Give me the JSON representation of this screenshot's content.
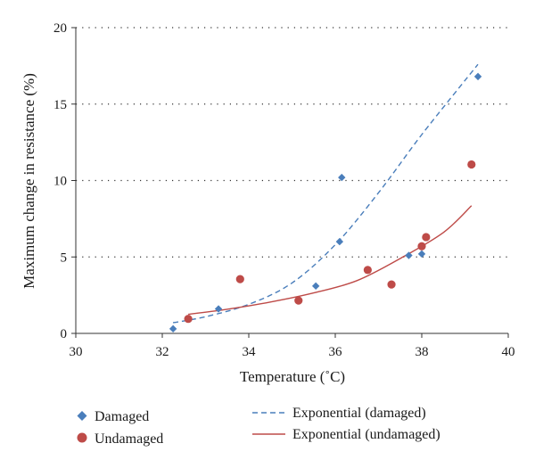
{
  "chart_data": {
    "type": "scatter",
    "xlabel": "Temperature (˚C)",
    "ylabel": "Maximum change in resistance (%)",
    "xlim": [
      30,
      40
    ],
    "ylim": [
      0,
      20
    ],
    "x_ticks": [
      30,
      32,
      34,
      36,
      38,
      40
    ],
    "y_ticks": [
      0,
      5,
      10,
      15,
      20
    ],
    "grid": "horizontal dotted",
    "legend_position": "bottom",
    "series": [
      {
        "name": "Damaged",
        "marker": "diamond",
        "color": "#4a7ebb",
        "points": [
          {
            "x": 32.25,
            "y": 0.3
          },
          {
            "x": 33.3,
            "y": 1.6
          },
          {
            "x": 35.55,
            "y": 3.1
          },
          {
            "x": 36.1,
            "y": 6.0
          },
          {
            "x": 36.15,
            "y": 10.2
          },
          {
            "x": 37.7,
            "y": 5.1
          },
          {
            "x": 38.0,
            "y": 5.2
          },
          {
            "x": 39.3,
            "y": 16.8
          }
        ]
      },
      {
        "name": "Undamaged",
        "marker": "circle",
        "color": "#be4b48",
        "points": [
          {
            "x": 32.6,
            "y": 0.95
          },
          {
            "x": 33.8,
            "y": 3.55
          },
          {
            "x": 35.15,
            "y": 2.15
          },
          {
            "x": 36.75,
            "y": 4.15
          },
          {
            "x": 37.3,
            "y": 3.2
          },
          {
            "x": 38.0,
            "y": 5.7
          },
          {
            "x": 38.1,
            "y": 6.3
          },
          {
            "x": 39.15,
            "y": 11.05
          }
        ]
      }
    ],
    "trendlines": [
      {
        "name": "Exponential (damaged)",
        "style": "dashed",
        "color": "#4a7ebb",
        "points": [
          {
            "x": 32.25,
            "y": 0.7
          },
          {
            "x": 33,
            "y": 1.09
          },
          {
            "x": 34,
            "y": 1.9
          },
          {
            "x": 35,
            "y": 3.3
          },
          {
            "x": 36,
            "y": 5.8
          },
          {
            "x": 37,
            "y": 9.2
          },
          {
            "x": 38,
            "y": 13.0
          },
          {
            "x": 39.3,
            "y": 17.6
          }
        ]
      },
      {
        "name": "Exponential (undamaged)",
        "style": "solid",
        "color": "#be4b48",
        "points": [
          {
            "x": 32.6,
            "y": 1.25
          },
          {
            "x": 33.5,
            "y": 1.58
          },
          {
            "x": 34.5,
            "y": 2.05
          },
          {
            "x": 35.5,
            "y": 2.65
          },
          {
            "x": 36.5,
            "y": 3.45
          },
          {
            "x": 37.5,
            "y": 4.9
          },
          {
            "x": 38.5,
            "y": 6.6
          },
          {
            "x": 39.15,
            "y": 8.35
          }
        ]
      }
    ]
  }
}
